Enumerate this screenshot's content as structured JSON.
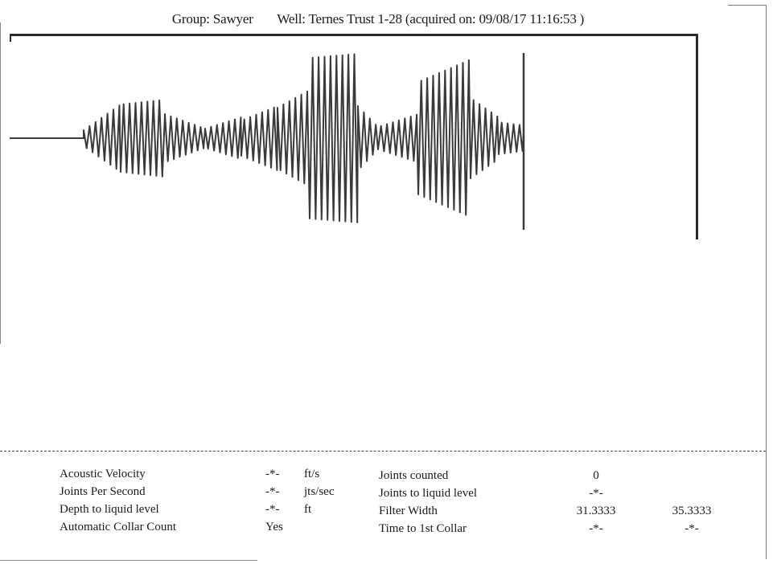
{
  "header": {
    "group": "Group: Sawyer",
    "well": "Well: Ternes Trust 1-28 (acquired on: 09/08/17 11:16:53 )"
  },
  "readouts": {
    "left": [
      {
        "label": "Acoustic Velocity",
        "value": "-*-",
        "unit": "ft/s"
      },
      {
        "label": "Joints Per Second",
        "value": "-*-",
        "unit": "jts/sec"
      },
      {
        "label": "Depth to liquid level",
        "value": "-*-",
        "unit": "ft"
      },
      {
        "label": "Automatic Collar Count",
        "value": "Yes",
        "unit": ""
      }
    ],
    "right": [
      {
        "label": "Joints counted",
        "value1": "0",
        "value2": ""
      },
      {
        "label": "Joints to liquid level",
        "value1": "-*-",
        "value2": ""
      },
      {
        "label": "Filter Width",
        "value1": "31.3333",
        "value2": "35.3333"
      },
      {
        "label": "Time to 1st Collar",
        "value1": "-*-",
        "value2": "-*-"
      }
    ]
  },
  "colors": {
    "trace": "#3a3a3a",
    "border": "#2a2a2a"
  }
}
